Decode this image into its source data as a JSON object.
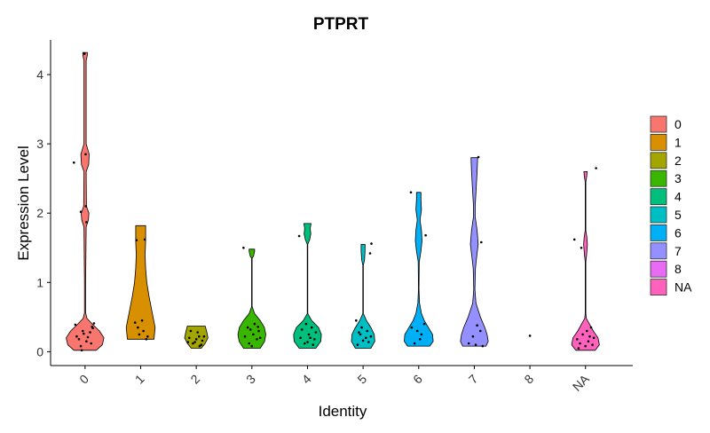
{
  "chart_data": {
    "type": "violin",
    "title": "PTPRT",
    "xlabel": "Identity",
    "ylabel": "Expression Level",
    "ylim": [
      -0.2,
      4.5
    ],
    "yticks": [
      0,
      1,
      2,
      3,
      4
    ],
    "categories": [
      "0",
      "1",
      "2",
      "3",
      "4",
      "5",
      "6",
      "7",
      "8",
      "NA"
    ],
    "colors": [
      "#F8766D",
      "#D89000",
      "#A3A500",
      "#39B600",
      "#00BF7D",
      "#00BFC4",
      "#00B0F6",
      "#9590FF",
      "#E76BF3",
      "#FF62BC"
    ],
    "legend_position": "right",
    "grid": false,
    "series": [
      {
        "name": "0",
        "max": 4.32,
        "profile": [
          [
            0.02,
            0.4
          ],
          [
            0.1,
            0.62
          ],
          [
            0.2,
            0.68
          ],
          [
            0.3,
            0.52
          ],
          [
            0.4,
            0.26
          ],
          [
            0.48,
            0.07
          ],
          [
            0.56,
            0.02
          ],
          [
            1.0,
            0.02
          ],
          [
            1.8,
            0.04
          ],
          [
            1.9,
            0.12
          ],
          [
            2.0,
            0.14
          ],
          [
            2.1,
            0.05
          ],
          [
            2.6,
            0.04
          ],
          [
            2.7,
            0.13
          ],
          [
            2.85,
            0.15
          ],
          [
            3.0,
            0.04
          ],
          [
            4.2,
            0.04
          ],
          [
            4.28,
            0.08
          ],
          [
            4.32,
            0.08
          ]
        ],
        "points": [
          [
            -0.35,
            0.39
          ],
          [
            -0.08,
            0.3
          ],
          [
            0.1,
            0.21
          ],
          [
            0.22,
            0.12
          ],
          [
            0.28,
            0.34
          ],
          [
            -0.22,
            0.18
          ],
          [
            -0.05,
            0.26
          ],
          [
            0.32,
            0.41
          ],
          [
            -0.15,
            0.08
          ],
          [
            0.18,
            0.28
          ],
          [
            -0.3,
            0.22
          ],
          [
            0.05,
            0.15
          ],
          [
            0.25,
            0.36
          ],
          [
            -0.12,
            0.02
          ],
          [
            -0.4,
            2.73
          ],
          [
            -0.15,
            2.02
          ],
          [
            0.02,
            2.85
          ],
          [
            0.05,
            1.87
          ],
          [
            -0.02,
            4.3
          ],
          [
            0.03,
            2.1
          ]
        ]
      },
      {
        "name": "1",
        "max": 1.82,
        "profile": [
          [
            0.18,
            0.48
          ],
          [
            0.35,
            0.52
          ],
          [
            0.55,
            0.42
          ],
          [
            0.8,
            0.3
          ],
          [
            1.0,
            0.22
          ],
          [
            1.2,
            0.18
          ],
          [
            1.4,
            0.16
          ],
          [
            1.6,
            0.18
          ],
          [
            1.82,
            0.18
          ]
        ],
        "points": [
          [
            -0.15,
            1.61
          ],
          [
            0.15,
            1.62
          ],
          [
            -0.05,
            0.25
          ],
          [
            -0.1,
            0.35
          ],
          [
            0.1,
            0.3
          ],
          [
            0.2,
            0.18
          ],
          [
            -0.2,
            0.42
          ],
          [
            0.25,
            0.22
          ],
          [
            0.05,
            0.45
          ]
        ]
      },
      {
        "name": "2",
        "max": 0.37,
        "profile": [
          [
            0.05,
            0.18
          ],
          [
            0.12,
            0.32
          ],
          [
            0.2,
            0.42
          ],
          [
            0.28,
            0.38
          ],
          [
            0.37,
            0.32
          ]
        ],
        "points": [
          [
            -0.2,
            0.3
          ],
          [
            0.1,
            0.22
          ],
          [
            -0.05,
            0.14
          ],
          [
            0.22,
            0.16
          ],
          [
            0.05,
            0.28
          ],
          [
            -0.25,
            0.2
          ],
          [
            0.18,
            0.1
          ],
          [
            -0.12,
            0.12
          ],
          [
            0.28,
            0.22
          ],
          [
            0.0,
            0.18
          ],
          [
            -0.3,
            0.14
          ],
          [
            0.12,
            0.08
          ]
        ]
      },
      {
        "name": "3",
        "max": 1.48,
        "profile": [
          [
            0.05,
            0.3
          ],
          [
            0.15,
            0.46
          ],
          [
            0.25,
            0.5
          ],
          [
            0.35,
            0.45
          ],
          [
            0.45,
            0.3
          ],
          [
            0.55,
            0.1
          ],
          [
            0.65,
            0.01
          ],
          [
            1.35,
            0.01
          ],
          [
            1.38,
            0.06
          ],
          [
            1.45,
            0.1
          ],
          [
            1.48,
            0.1
          ]
        ],
        "points": [
          [
            -0.3,
            1.5
          ],
          [
            -0.15,
            0.35
          ],
          [
            0.05,
            0.25
          ],
          [
            -0.1,
            0.12
          ],
          [
            0.25,
            0.3
          ],
          [
            0.1,
            0.4
          ],
          [
            -0.25,
            0.22
          ],
          [
            0.18,
            0.18
          ],
          [
            -0.05,
            0.32
          ],
          [
            0.3,
            0.2
          ],
          [
            0.0,
            0.08
          ],
          [
            0.22,
            0.36
          ]
        ]
      },
      {
        "name": "4",
        "max": 1.85,
        "profile": [
          [
            0.05,
            0.3
          ],
          [
            0.15,
            0.48
          ],
          [
            0.25,
            0.5
          ],
          [
            0.35,
            0.4
          ],
          [
            0.45,
            0.15
          ],
          [
            0.55,
            0.01
          ],
          [
            1.55,
            0.01
          ],
          [
            1.62,
            0.08
          ],
          [
            1.7,
            0.12
          ],
          [
            1.78,
            0.1
          ],
          [
            1.85,
            0.13
          ]
        ],
        "points": [
          [
            -0.3,
            1.67
          ],
          [
            -0.2,
            0.32
          ],
          [
            0.05,
            0.25
          ],
          [
            0.25,
            0.18
          ],
          [
            -0.1,
            0.12
          ],
          [
            0.15,
            0.35
          ],
          [
            0.3,
            0.28
          ],
          [
            -0.25,
            0.2
          ],
          [
            0.0,
            0.14
          ],
          [
            0.2,
            0.1
          ],
          [
            -0.05,
            0.4
          ],
          [
            0.1,
            0.2
          ]
        ]
      },
      {
        "name": "5",
        "max": 1.55,
        "profile": [
          [
            0.05,
            0.28
          ],
          [
            0.15,
            0.42
          ],
          [
            0.25,
            0.4
          ],
          [
            0.35,
            0.28
          ],
          [
            0.45,
            0.12
          ],
          [
            0.55,
            0.01
          ],
          [
            1.25,
            0.01
          ],
          [
            1.32,
            0.05
          ],
          [
            1.45,
            0.07
          ],
          [
            1.55,
            0.07
          ]
        ],
        "points": [
          [
            0.3,
            1.56
          ],
          [
            0.25,
            1.42
          ],
          [
            -0.1,
            0.25
          ],
          [
            0.1,
            0.2
          ],
          [
            -0.25,
            0.45
          ],
          [
            0.2,
            0.14
          ],
          [
            -0.05,
            0.35
          ],
          [
            0.15,
            0.3
          ],
          [
            -0.2,
            0.1
          ],
          [
            0.28,
            0.22
          ],
          [
            0.0,
            0.16
          ],
          [
            -0.15,
            0.28
          ]
        ]
      },
      {
        "name": "6",
        "max": 2.3,
        "profile": [
          [
            0.08,
            0.4
          ],
          [
            0.15,
            0.52
          ],
          [
            0.25,
            0.5
          ],
          [
            0.35,
            0.35
          ],
          [
            0.45,
            0.2
          ],
          [
            0.55,
            0.1
          ],
          [
            0.7,
            0.03
          ],
          [
            0.9,
            0.01
          ],
          [
            1.3,
            0.02
          ],
          [
            1.45,
            0.08
          ],
          [
            1.6,
            0.12
          ],
          [
            1.75,
            0.1
          ],
          [
            1.9,
            0.05
          ],
          [
            2.05,
            0.1
          ],
          [
            2.2,
            0.08
          ],
          [
            2.3,
            0.08
          ]
        ],
        "points": [
          [
            -0.28,
            2.3
          ],
          [
            0.25,
            1.68
          ],
          [
            0.1,
            0.25
          ],
          [
            -0.15,
            0.12
          ],
          [
            0.2,
            0.4
          ],
          [
            -0.05,
            0.3
          ],
          [
            0.05,
            0.18
          ],
          [
            -0.25,
            0.35
          ]
        ]
      },
      {
        "name": "7",
        "max": 2.8,
        "profile": [
          [
            0.08,
            0.42
          ],
          [
            0.15,
            0.5
          ],
          [
            0.25,
            0.46
          ],
          [
            0.35,
            0.38
          ],
          [
            0.5,
            0.22
          ],
          [
            0.7,
            0.06
          ],
          [
            0.9,
            0.02
          ],
          [
            1.2,
            0.04
          ],
          [
            1.35,
            0.08
          ],
          [
            1.55,
            0.14
          ],
          [
            1.75,
            0.1
          ],
          [
            1.95,
            0.03
          ],
          [
            2.1,
            0.03
          ],
          [
            2.3,
            0.06
          ],
          [
            2.6,
            0.1
          ],
          [
            2.8,
            0.12
          ]
        ],
        "points": [
          [
            0.15,
            2.81
          ],
          [
            0.25,
            1.58
          ],
          [
            0.3,
            0.08
          ],
          [
            -0.05,
            0.22
          ],
          [
            0.1,
            0.38
          ],
          [
            -0.2,
            0.12
          ],
          [
            0.22,
            0.3
          ],
          [
            0.05,
            0.1
          ]
        ]
      },
      {
        "name": "8",
        "max": 0.23,
        "profile": [],
        "points": [
          [
            0.0,
            0.23
          ]
        ]
      },
      {
        "name": "NA",
        "max": 2.6,
        "profile": [
          [
            0.02,
            0.35
          ],
          [
            0.1,
            0.5
          ],
          [
            0.2,
            0.45
          ],
          [
            0.3,
            0.28
          ],
          [
            0.4,
            0.14
          ],
          [
            0.48,
            0.03
          ],
          [
            0.55,
            0.01
          ],
          [
            1.3,
            0.01
          ],
          [
            1.4,
            0.04
          ],
          [
            1.55,
            0.07
          ],
          [
            1.65,
            0.05
          ],
          [
            1.75,
            0.01
          ],
          [
            2.45,
            0.01
          ],
          [
            2.52,
            0.04
          ],
          [
            2.6,
            0.06
          ]
        ],
        "points": [
          [
            -0.4,
            1.62
          ],
          [
            -0.15,
            1.5
          ],
          [
            0.38,
            2.65
          ],
          [
            0.05,
            0.3
          ],
          [
            -0.2,
            0.12
          ],
          [
            0.15,
            0.22
          ],
          [
            -0.3,
            0.18
          ],
          [
            0.25,
            0.1
          ],
          [
            -0.1,
            0.25
          ],
          [
            0.2,
            0.35
          ],
          [
            0.0,
            0.08
          ],
          [
            -0.25,
            0.05
          ],
          [
            0.3,
            0.2
          ],
          [
            0.1,
            0.15
          ]
        ]
      }
    ]
  }
}
